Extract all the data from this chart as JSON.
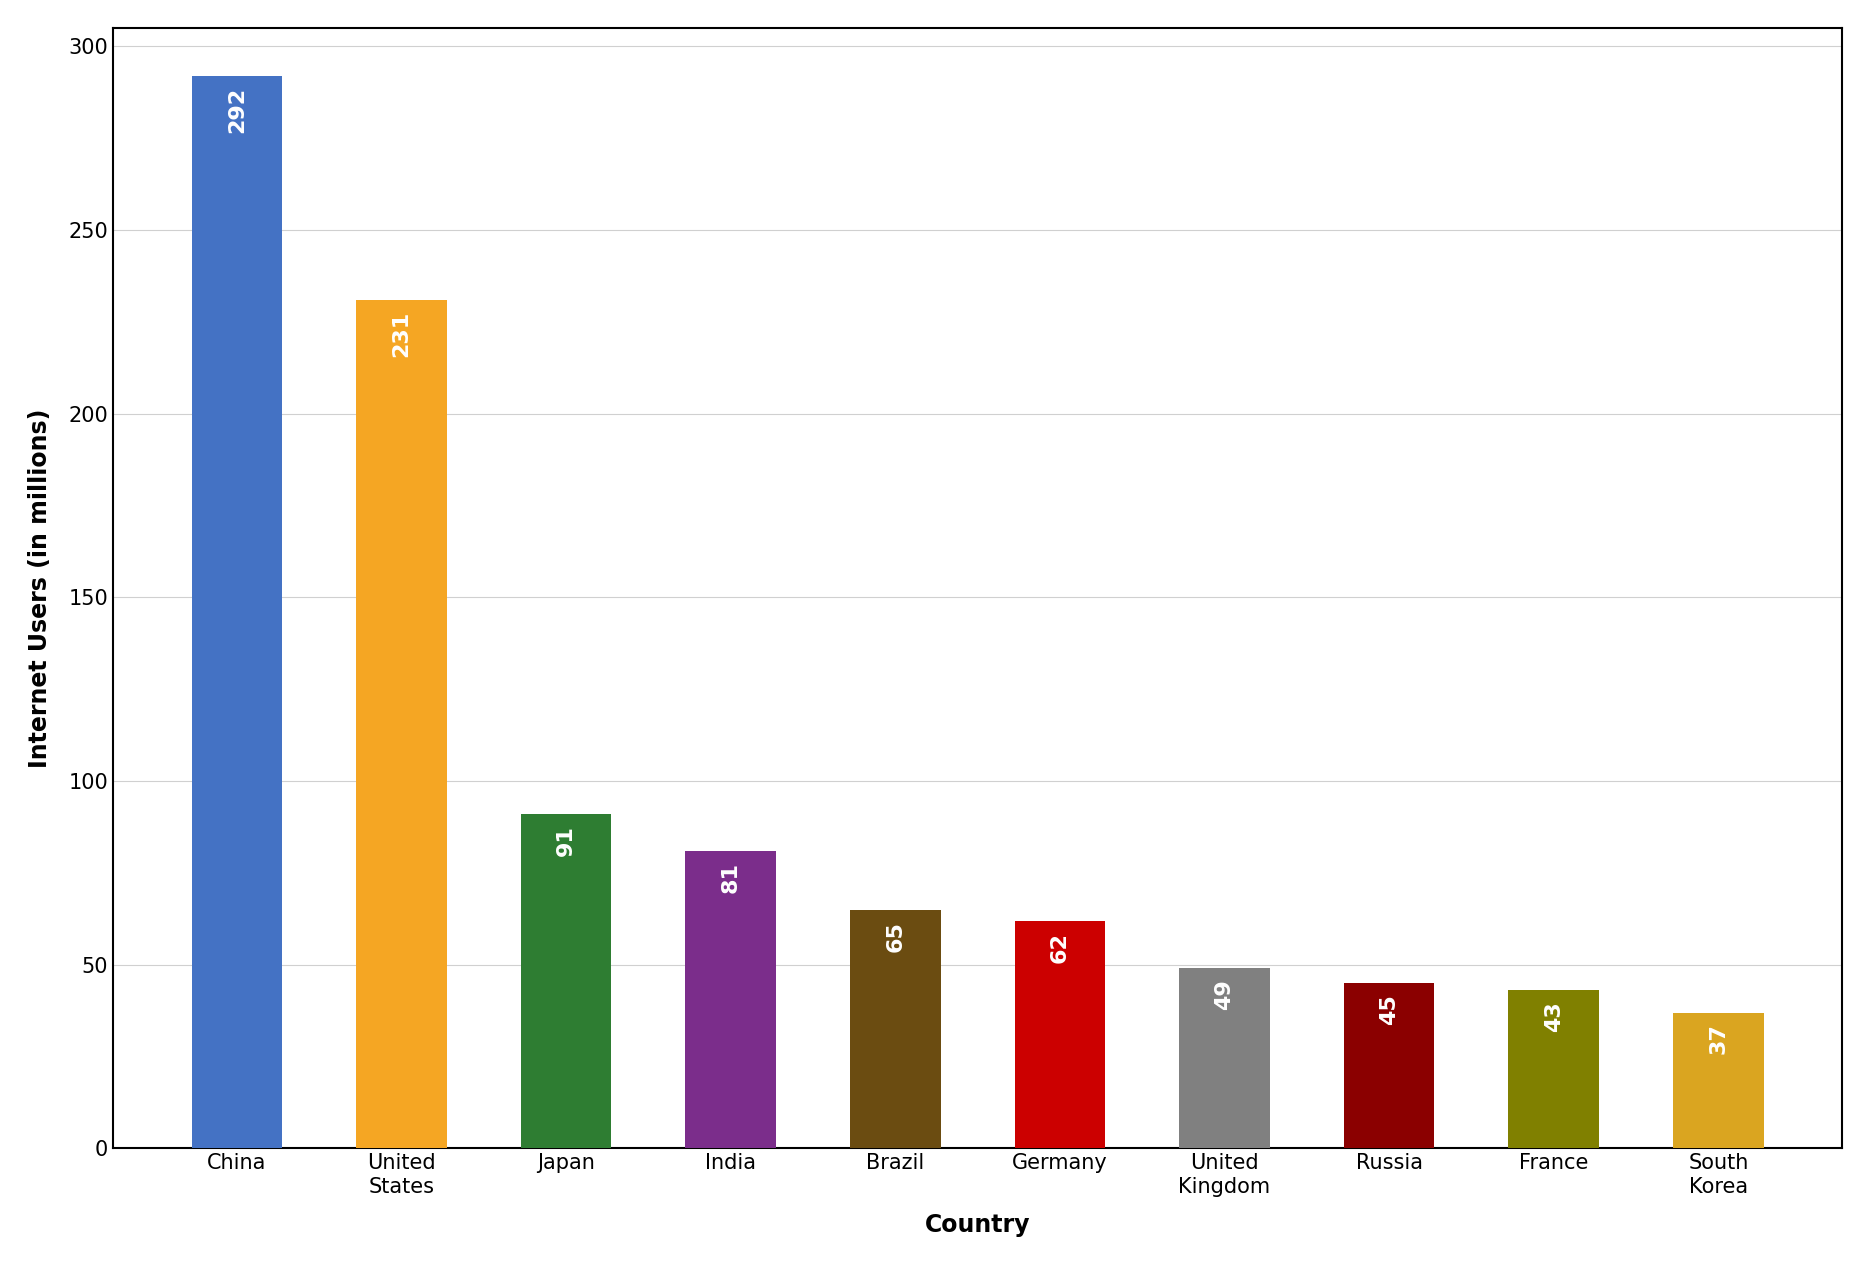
{
  "categories": [
    "China",
    "United\nStates",
    "Japan",
    "India",
    "Brazil",
    "Germany",
    "United\nKingdom",
    "Russia",
    "France",
    "South\nKorea"
  ],
  "values": [
    292,
    231,
    91,
    81,
    65,
    62,
    49,
    45,
    43,
    37
  ],
  "bar_colors": [
    "#4472C4",
    "#F5A623",
    "#2E7D32",
    "#7B2D8B",
    "#6B4C11",
    "#CC0000",
    "#808080",
    "#8B0000",
    "#808000",
    "#DAA520"
  ],
  "xlabel": "Country",
  "ylabel": "Internet Users (in millions)",
  "ylim": [
    0,
    305
  ],
  "yticks": [
    0,
    50,
    100,
    150,
    200,
    250,
    300
  ],
  "label_color": "#ffffff",
  "label_fontsize": 16,
  "axis_label_fontsize": 17,
  "tick_fontsize": 15,
  "background_color": "#ffffff",
  "grid_color": "#d0d0d0",
  "bar_width": 0.55
}
